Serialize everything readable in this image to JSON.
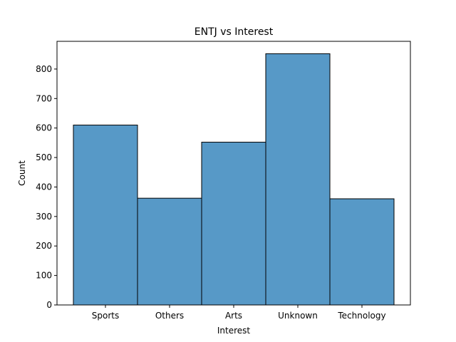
{
  "chart_data": {
    "type": "bar",
    "title": "ENTJ vs Interest",
    "xlabel": "Interest",
    "ylabel": "Count",
    "categories": [
      "Sports",
      "Others",
      "Arts",
      "Unknown",
      "Technology"
    ],
    "values": [
      610,
      362,
      552,
      852,
      360
    ],
    "ylim": [
      0,
      894
    ],
    "yticks": [
      0,
      100,
      200,
      300,
      400,
      500,
      600,
      700,
      800
    ],
    "grid": false,
    "bar_color": "#5799C7",
    "edge_color": "#000000"
  }
}
